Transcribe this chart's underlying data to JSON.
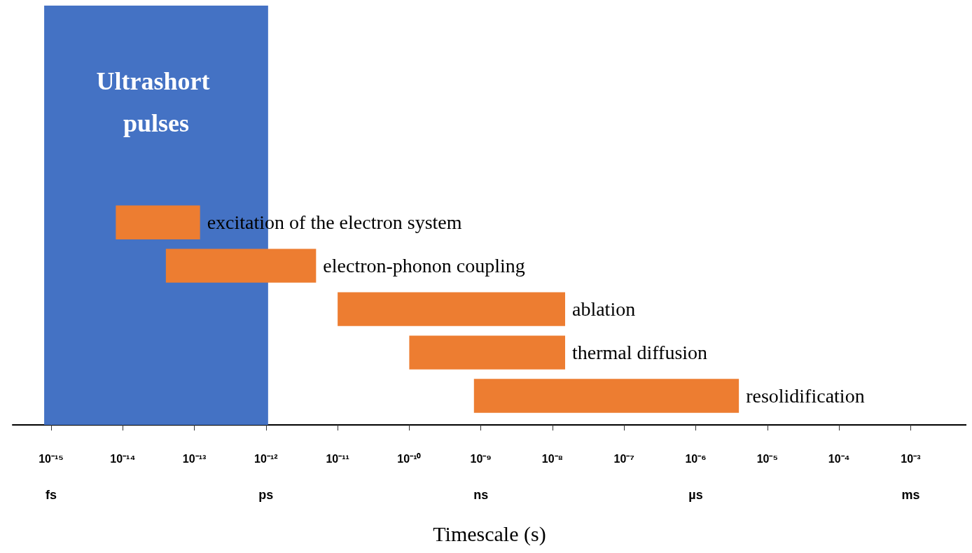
{
  "chart_data": {
    "type": "bar",
    "orientation": "horizontal",
    "log": "x",
    "xlabel": "Timescale (s)",
    "categories": [
      "excitation of the electron system",
      "electron-phonon coupling",
      "ablation",
      "thermal diffusion",
      "resolidification"
    ],
    "base": [
      8e-15,
      4e-14,
      1e-11,
      1e-10,
      8e-10
    ],
    "values": [
      1.12e-13,
      4.96e-12,
      1.499e-08,
      1.49e-08,
      3.9992e-06
    ],
    "color": "#ed7d31",
    "xlim": [
      2.9e-16,
      0.006
    ],
    "xticks": [
      {
        "value": 1e-15,
        "label": "10⁻¹⁵"
      },
      {
        "value": 1e-14,
        "label": "10⁻¹⁴"
      },
      {
        "value": 1e-13,
        "label": "10⁻¹³"
      },
      {
        "value": 1e-12,
        "label": "10⁻¹²"
      },
      {
        "value": 1e-11,
        "label": "10⁻¹¹"
      },
      {
        "value": 1e-10,
        "label": "10⁻¹⁰"
      },
      {
        "value": 1e-09,
        "label": "10⁻⁹"
      },
      {
        "value": 1e-08,
        "label": "10⁻⁸"
      },
      {
        "value": 1e-07,
        "label": "10⁻⁷"
      },
      {
        "value": 1e-06,
        "label": "10⁻⁶"
      },
      {
        "value": 1e-05,
        "label": "10⁻⁵"
      },
      {
        "value": 0.0001,
        "label": "10⁻⁴"
      },
      {
        "value": 0.001,
        "label": "10⁻³"
      }
    ],
    "annotations": [
      "fs",
      "ps",
      "ns",
      "µs",
      "ms"
    ],
    "bands": [
      {
        "axis": "x",
        "from": 8e-16,
        "to": 1.07e-12,
        "label": "Ultrashort pulses",
        "color": "#4472c4"
      }
    ],
    "tick_labels": "x",
    "grid": false
  }
}
